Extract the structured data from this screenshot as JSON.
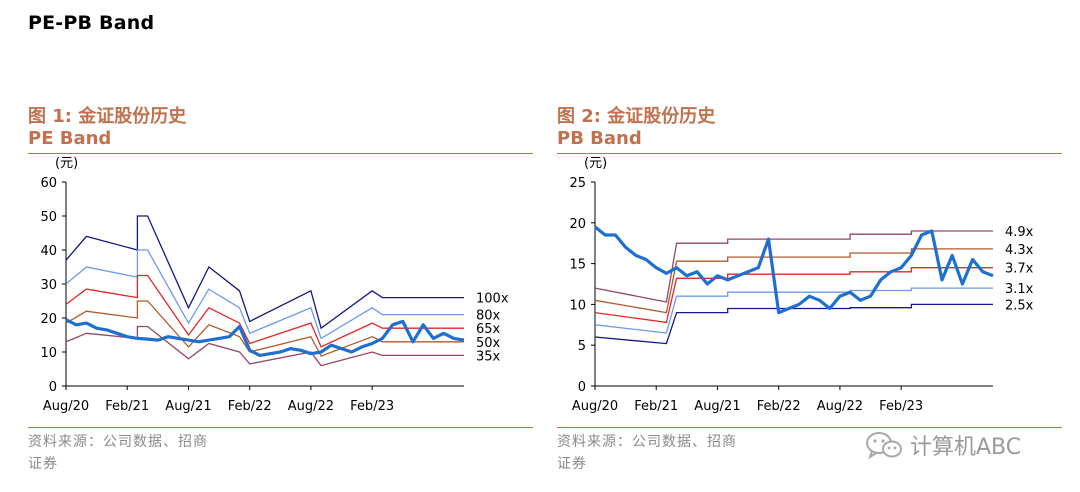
{
  "page_title": "PE-PB Band",
  "watermark": {
    "text": "计算机ABC",
    "icon": "wechat-icon"
  },
  "colors": {
    "accent": "#c0714f",
    "price": "#1f6fce",
    "band_colors": [
      "#12198a",
      "#6e9ae8",
      "#e02828",
      "#b25a2a",
      "#93466a"
    ]
  },
  "chart_data": [
    {
      "type": "line",
      "figure_label": "图 1:",
      "figure_title": "金证股份历史",
      "title": "PE Band",
      "ylabel": "(元)",
      "source": "资料来源：公司数据、招商证券",
      "ylim": [
        0,
        60
      ],
      "yticks": [
        0,
        10,
        20,
        30,
        40,
        50,
        60
      ],
      "xlim": [
        "2020-08",
        "2023-11"
      ],
      "xticks": [
        {
          "label": "Aug/20",
          "x": "2020-08"
        },
        {
          "label": "Feb/21",
          "x": "2021-02"
        },
        {
          "label": "Aug/21",
          "x": "2021-08"
        },
        {
          "label": "Feb/22",
          "x": "2022-02"
        },
        {
          "label": "Aug/22",
          "x": "2022-08"
        },
        {
          "label": "Feb/23",
          "x": "2023-02"
        }
      ],
      "bands": [
        {
          "label": "100x",
          "x": [
            "2020-08",
            "2020-10",
            "2021-03",
            "2021-03",
            "2021-04",
            "2021-08",
            "2021-10",
            "2022-01",
            "2022-02",
            "2022-08",
            "2022-09",
            "2023-02",
            "2023-03",
            "2023-11"
          ],
          "values": [
            37,
            44,
            40,
            50,
            50,
            23,
            35,
            28,
            19,
            28,
            17,
            28,
            26,
            26
          ]
        },
        {
          "label": "80x",
          "x": [
            "2020-08",
            "2020-10",
            "2021-03",
            "2021-03",
            "2021-04",
            "2021-08",
            "2021-10",
            "2022-01",
            "2022-02",
            "2022-08",
            "2022-09",
            "2023-02",
            "2023-03",
            "2023-11"
          ],
          "values": [
            30,
            35,
            32,
            40,
            40,
            18.5,
            28.5,
            23,
            15.5,
            23,
            14,
            23,
            21,
            21
          ]
        },
        {
          "label": "65x",
          "x": [
            "2020-08",
            "2020-10",
            "2021-03",
            "2021-03",
            "2021-04",
            "2021-08",
            "2021-10",
            "2022-01",
            "2022-02",
            "2022-08",
            "2022-09",
            "2023-02",
            "2023-03",
            "2023-11"
          ],
          "values": [
            24,
            28.5,
            26,
            32.5,
            32.5,
            15,
            23,
            18.5,
            12.5,
            18.5,
            11.5,
            18.5,
            17,
            17
          ]
        },
        {
          "label": "50x",
          "x": [
            "2020-08",
            "2020-10",
            "2021-03",
            "2021-03",
            "2021-04",
            "2021-08",
            "2021-10",
            "2022-01",
            "2022-02",
            "2022-08",
            "2022-09",
            "2023-02",
            "2023-03",
            "2023-11"
          ],
          "values": [
            18.5,
            22,
            20,
            25,
            25,
            11.5,
            18,
            14.5,
            10,
            14.5,
            8.8,
            14.5,
            13,
            13
          ]
        },
        {
          "label": "35x",
          "x": [
            "2020-08",
            "2020-10",
            "2021-03",
            "2021-03",
            "2021-04",
            "2021-08",
            "2021-10",
            "2022-01",
            "2022-02",
            "2022-08",
            "2022-09",
            "2023-02",
            "2023-03",
            "2023-11"
          ],
          "values": [
            13,
            15.5,
            14,
            17.5,
            17.5,
            8,
            12.5,
            10,
            6.5,
            10,
            6,
            10,
            9,
            9
          ]
        }
      ],
      "price": {
        "x": [
          "2020-08",
          "2020-09",
          "2020-10",
          "2020-11",
          "2020-12",
          "2021-01",
          "2021-02",
          "2021-03",
          "2021-04",
          "2021-05",
          "2021-06",
          "2021-07",
          "2021-08",
          "2021-09",
          "2021-10",
          "2021-11",
          "2021-12",
          "2022-01",
          "2022-02",
          "2022-03",
          "2022-04",
          "2022-05",
          "2022-06",
          "2022-07",
          "2022-08",
          "2022-09",
          "2022-10",
          "2022-11",
          "2022-12",
          "2023-01",
          "2023-02",
          "2023-03",
          "2023-04",
          "2023-05",
          "2023-06",
          "2023-07",
          "2023-08",
          "2023-09",
          "2023-10",
          "2023-11"
        ],
        "values": [
          19.5,
          18,
          18.5,
          17,
          16.5,
          15.5,
          14.5,
          14,
          13.8,
          13.5,
          14.5,
          14,
          13.5,
          13,
          13.5,
          14,
          14.5,
          17.5,
          10.5,
          9,
          9.5,
          10,
          11,
          10.5,
          9.5,
          10,
          12,
          11,
          10,
          11.5,
          12.5,
          14,
          18,
          19,
          13,
          18,
          14,
          15.5,
          14,
          13.5
        ]
      }
    },
    {
      "type": "line",
      "figure_label": "图 2:",
      "figure_title": "金证股份历史",
      "title": "PB Band",
      "ylabel": "(元)",
      "source": "资料来源：公司数据、招商证券",
      "ylim": [
        0,
        25
      ],
      "yticks": [
        0,
        5,
        10,
        15,
        20,
        25
      ],
      "xlim": [
        "2020-08",
        "2023-11"
      ],
      "xticks": [
        {
          "label": "Aug/20",
          "x": "2020-08"
        },
        {
          "label": "Feb/21",
          "x": "2021-02"
        },
        {
          "label": "Aug/21",
          "x": "2021-08"
        },
        {
          "label": "Feb/22",
          "x": "2022-02"
        },
        {
          "label": "Aug/22",
          "x": "2022-08"
        },
        {
          "label": "Feb/23",
          "x": "2023-02"
        }
      ],
      "bands": [
        {
          "label": "2.5x",
          "x": [
            "2020-08",
            "2021-03",
            "2021-04",
            "2021-09",
            "2021-09",
            "2022-09",
            "2022-09",
            "2023-03",
            "2023-03",
            "2023-11"
          ],
          "values": [
            6,
            5.2,
            9,
            9,
            9.5,
            9.5,
            9.6,
            9.6,
            10,
            10
          ]
        },
        {
          "label": "3.1x",
          "x": [
            "2020-08",
            "2021-03",
            "2021-04",
            "2021-09",
            "2021-09",
            "2022-09",
            "2022-09",
            "2023-03",
            "2023-03",
            "2023-11"
          ],
          "values": [
            7.5,
            6.5,
            11,
            11,
            11.5,
            11.5,
            11.7,
            11.7,
            12,
            12
          ]
        },
        {
          "label": "3.7x",
          "x": [
            "2020-08",
            "2021-03",
            "2021-04",
            "2021-09",
            "2021-09",
            "2022-09",
            "2022-09",
            "2023-03",
            "2023-03",
            "2023-11"
          ],
          "values": [
            9,
            7.8,
            13.2,
            13.2,
            13.7,
            13.7,
            14,
            14,
            14.5,
            14.5
          ]
        },
        {
          "label": "4.3x",
          "x": [
            "2020-08",
            "2021-03",
            "2021-04",
            "2021-09",
            "2021-09",
            "2022-09",
            "2022-09",
            "2023-03",
            "2023-03",
            "2023-11"
          ],
          "values": [
            10.5,
            9,
            15.3,
            15.3,
            15.8,
            15.8,
            16.3,
            16.3,
            16.8,
            16.8
          ]
        },
        {
          "label": "4.9x",
          "x": [
            "2020-08",
            "2021-03",
            "2021-04",
            "2021-09",
            "2021-09",
            "2022-09",
            "2022-09",
            "2023-03",
            "2023-03",
            "2023-11"
          ],
          "values": [
            12,
            10.3,
            17.5,
            17.5,
            18,
            18,
            18.6,
            18.6,
            19,
            19
          ]
        }
      ],
      "price": {
        "x": [
          "2020-08",
          "2020-09",
          "2020-10",
          "2020-11",
          "2020-12",
          "2021-01",
          "2021-02",
          "2021-03",
          "2021-04",
          "2021-05",
          "2021-06",
          "2021-07",
          "2021-08",
          "2021-09",
          "2021-10",
          "2021-11",
          "2021-12",
          "2022-01",
          "2022-02",
          "2022-03",
          "2022-04",
          "2022-05",
          "2022-06",
          "2022-07",
          "2022-08",
          "2022-09",
          "2022-10",
          "2022-11",
          "2022-12",
          "2023-01",
          "2023-02",
          "2023-03",
          "2023-04",
          "2023-05",
          "2023-06",
          "2023-07",
          "2023-08",
          "2023-09",
          "2023-10",
          "2023-11"
        ],
        "values": [
          19.5,
          18.5,
          18.5,
          17,
          16,
          15.5,
          14.5,
          13.8,
          14.5,
          13.5,
          14,
          12.5,
          13.5,
          13,
          13.5,
          14,
          14.5,
          18,
          9,
          9.5,
          10,
          11,
          10.5,
          9.5,
          11,
          11.5,
          10.5,
          11,
          13,
          14,
          14.5,
          16,
          18.5,
          19,
          13,
          16,
          12.5,
          15.5,
          14,
          13.5
        ]
      }
    }
  ]
}
